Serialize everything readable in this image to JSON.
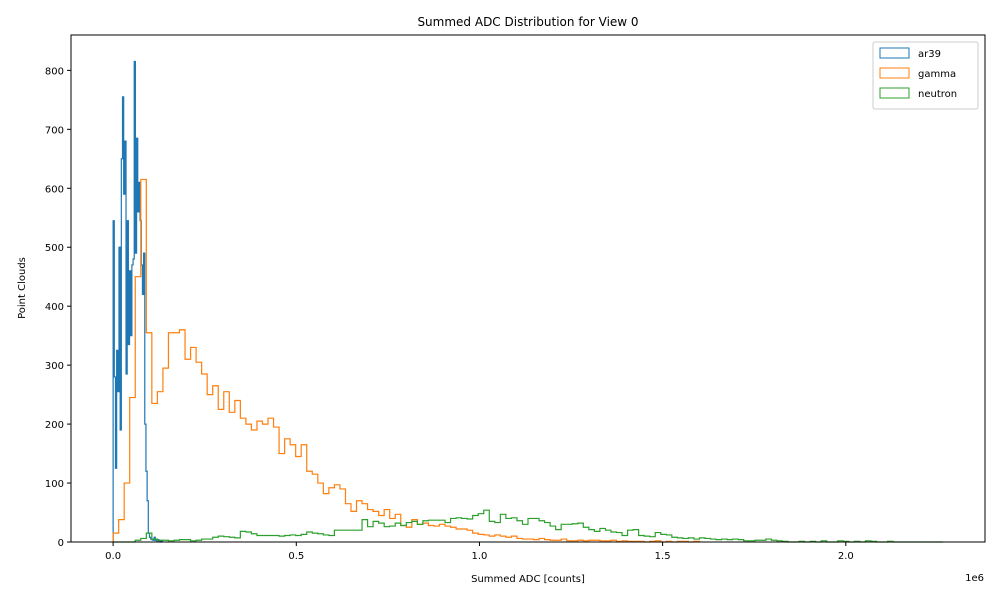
{
  "chart_data": {
    "type": "histogram",
    "title": "Summed ADC Distribution for View 0",
    "xlabel": "Summed ADC [counts]",
    "ylabel": "Point Clouds",
    "x_offset_label": "1e6",
    "xlim": [
      -0.115,
      2.38
    ],
    "ylim": [
      0,
      860
    ],
    "x_ticks": [
      0.0,
      0.5,
      1.0,
      1.5,
      2.0
    ],
    "x_tick_labels": [
      "0.0",
      "0.5",
      "1.0",
      "1.5",
      "2.0"
    ],
    "y_ticks": [
      0,
      100,
      200,
      300,
      400,
      500,
      600,
      700,
      800
    ],
    "y_tick_labels": [
      "0",
      "100",
      "200",
      "300",
      "400",
      "500",
      "600",
      "700",
      "800"
    ],
    "grid": false,
    "legend_position": "top-right",
    "series": [
      {
        "name": "ar39",
        "color": "#1f77b4",
        "bin_start": 0.0,
        "bin_width": 0.0032,
        "values": [
          545,
          280,
          125,
          325,
          255,
          500,
          190,
          650,
          755,
          590,
          680,
          285,
          545,
          335,
          460,
          350,
          470,
          480,
          815,
          490,
          685,
          560,
          610,
          545,
          470,
          420,
          490,
          200,
          120,
          70,
          15,
          8,
          5,
          4,
          3,
          8,
          3,
          2,
          4,
          2,
          0,
          2
        ]
      },
      {
        "name": "gamma",
        "color": "#ff7f0e",
        "bin_start": 0.0,
        "bin_width": 0.0151,
        "values": [
          15,
          38,
          100,
          245,
          450,
          615,
          355,
          235,
          255,
          295,
          355,
          355,
          360,
          310,
          330,
          305,
          285,
          250,
          265,
          225,
          255,
          220,
          240,
          210,
          200,
          190,
          205,
          200,
          210,
          195,
          150,
          175,
          165,
          145,
          165,
          120,
          115,
          100,
          82,
          92,
          97,
          90,
          65,
          52,
          70,
          65,
          55,
          52,
          45,
          55,
          40,
          47,
          28,
          25,
          38,
          30,
          32,
          28,
          27,
          30,
          27,
          25,
          22,
          22,
          20,
          15,
          13,
          12,
          10,
          12,
          10,
          8,
          10,
          6,
          5,
          5,
          4,
          6,
          4,
          3,
          3,
          5,
          2,
          2,
          3,
          2,
          3,
          3,
          2,
          2,
          3,
          1,
          2,
          1,
          1,
          1,
          0,
          1,
          2,
          0,
          1,
          0,
          1,
          1,
          0,
          1
        ]
      },
      {
        "name": "neutron",
        "color": "#2ca02c",
        "bin_start": 0.0,
        "bin_width": 0.0151,
        "values": [
          0,
          0,
          0,
          0,
          3,
          6,
          15,
          5,
          3,
          3,
          2,
          3,
          4,
          4,
          2,
          3,
          5,
          5,
          8,
          10,
          9,
          8,
          7,
          18,
          17,
          14,
          11,
          11,
          11,
          11,
          10,
          11,
          12,
          11,
          13,
          17,
          15,
          14,
          12,
          11,
          20,
          20,
          20,
          20,
          20,
          38,
          26,
          35,
          32,
          26,
          27,
          32,
          28,
          33,
          35,
          30,
          36,
          37,
          37,
          37,
          33,
          40,
          41,
          40,
          39,
          45,
          48,
          54,
          35,
          33,
          47,
          40,
          41,
          36,
          30,
          40,
          40,
          36,
          33,
          27,
          21,
          30,
          30,
          31,
          32,
          25,
          21,
          18,
          23,
          20,
          17,
          16,
          11,
          20,
          21,
          11,
          10,
          9,
          16,
          13,
          12,
          8,
          7,
          6,
          7,
          5,
          7,
          6,
          5,
          4,
          5,
          4,
          5,
          4,
          2,
          2,
          3,
          3,
          5,
          3,
          2,
          1,
          0,
          0,
          1,
          0,
          1,
          0,
          2,
          0,
          0,
          2,
          1,
          0,
          1,
          0,
          2,
          1,
          0,
          0,
          1,
          0,
          0,
          0,
          0,
          0,
          0,
          0,
          0,
          0
        ]
      }
    ]
  }
}
